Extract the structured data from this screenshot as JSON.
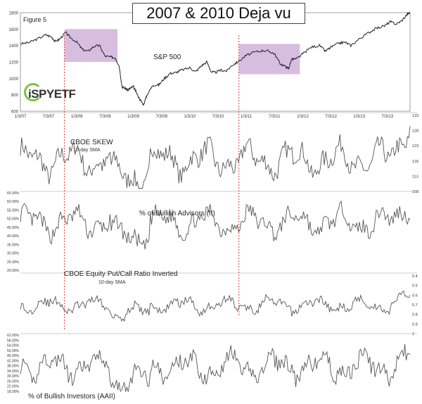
{
  "title": "2007 & 2010 Deja vu",
  "figure_label": "Figure 5",
  "logo_text": "iSPYETF",
  "colors": {
    "line": "#333333",
    "highlight": "#caa8d6",
    "marker": "#e23b3b",
    "panel_rule": "#bbbbbb"
  },
  "chart_data": [
    {
      "type": "line",
      "name": "sp500",
      "label": "S&P 500",
      "ylim": [
        600,
        1800
      ],
      "yticks": [
        "1800",
        "1600",
        "1400",
        "1200",
        "1000",
        "800",
        "600"
      ],
      "xticks": [
        "1/3/07",
        "7/3/07",
        "1/3/08",
        "7/3/08",
        "1/3/09",
        "7/3/09",
        "1/3/10",
        "7/3/10",
        "1/3/11",
        "7/3/11",
        "1/3/12",
        "7/3/12",
        "1/3/13",
        "7/3/13"
      ],
      "x_start_year": 2007.0,
      "x_end_year": 2013.9,
      "highlights": [
        {
          "from": 2007.78,
          "to": 2008.72,
          "ymin": 1200,
          "ymax": 1600
        },
        {
          "from": 2010.87,
          "to": 2011.95,
          "ymin": 1050,
          "ymax": 1420
        }
      ],
      "points": [
        [
          2007.0,
          1420
        ],
        [
          2007.15,
          1435
        ],
        [
          2007.3,
          1480
        ],
        [
          2007.45,
          1530
        ],
        [
          2007.55,
          1505
        ],
        [
          2007.62,
          1450
        ],
        [
          2007.7,
          1480
        ],
        [
          2007.8,
          1560
        ],
        [
          2007.88,
          1500
        ],
        [
          2008.0,
          1440
        ],
        [
          2008.1,
          1350
        ],
        [
          2008.2,
          1330
        ],
        [
          2008.3,
          1390
        ],
        [
          2008.4,
          1400
        ],
        [
          2008.5,
          1270
        ],
        [
          2008.6,
          1260
        ],
        [
          2008.68,
          1250
        ],
        [
          2008.75,
          1150
        ],
        [
          2008.8,
          900
        ],
        [
          2008.85,
          880
        ],
        [
          2008.9,
          860
        ],
        [
          2008.95,
          880
        ],
        [
          2009.0,
          900
        ],
        [
          2009.05,
          830
        ],
        [
          2009.12,
          740
        ],
        [
          2009.18,
          680
        ],
        [
          2009.25,
          810
        ],
        [
          2009.35,
          920
        ],
        [
          2009.45,
          920
        ],
        [
          2009.55,
          1000
        ],
        [
          2009.65,
          1060
        ],
        [
          2009.75,
          1070
        ],
        [
          2009.85,
          1100
        ],
        [
          2010.0,
          1130
        ],
        [
          2010.1,
          1080
        ],
        [
          2010.2,
          1150
        ],
        [
          2010.3,
          1200
        ],
        [
          2010.38,
          1080
        ],
        [
          2010.45,
          1070
        ],
        [
          2010.55,
          1100
        ],
        [
          2010.65,
          1090
        ],
        [
          2010.75,
          1160
        ],
        [
          2010.85,
          1200
        ],
        [
          2011.0,
          1280
        ],
        [
          2011.15,
          1320
        ],
        [
          2011.3,
          1340
        ],
        [
          2011.4,
          1330
        ],
        [
          2011.5,
          1300
        ],
        [
          2011.6,
          1180
        ],
        [
          2011.7,
          1140
        ],
        [
          2011.75,
          1120
        ],
        [
          2011.8,
          1230
        ],
        [
          2011.9,
          1240
        ],
        [
          2012.0,
          1300
        ],
        [
          2012.15,
          1380
        ],
        [
          2012.3,
          1400
        ],
        [
          2012.4,
          1330
        ],
        [
          2012.5,
          1380
        ],
        [
          2012.65,
          1430
        ],
        [
          2012.75,
          1440
        ],
        [
          2012.85,
          1400
        ],
        [
          2013.0,
          1480
        ],
        [
          2013.15,
          1550
        ],
        [
          2013.3,
          1610
        ],
        [
          2013.45,
          1640
        ],
        [
          2013.55,
          1690
        ],
        [
          2013.65,
          1660
        ],
        [
          2013.75,
          1700
        ],
        [
          2013.85,
          1780
        ],
        [
          2013.9,
          1800
        ]
      ]
    },
    {
      "type": "line",
      "name": "skew",
      "label": "CBOE SKEW",
      "sublabel": "10-day SMA",
      "yticks_right": [
        "133",
        "128",
        "123",
        "118",
        "113",
        "108"
      ],
      "ylim": [
        108,
        133
      ],
      "seed": 7,
      "base": 118,
      "amp": 4.2,
      "endkick": 12
    },
    {
      "type": "line",
      "name": "bullish_advisors",
      "label": "% of Bullish Advisors (II)",
      "yticks_left": [
        "65.00%",
        "60.00%",
        "55.00%",
        "50.00%",
        "45.00%",
        "40.00%",
        "35.00%",
        "30.00%",
        "25.00%",
        "20.00%"
      ],
      "ylim": [
        20,
        65
      ],
      "seed": 13,
      "base": 48,
      "amp": 6,
      "endkick": 12
    },
    {
      "type": "line",
      "name": "putcall_inverted",
      "label": "CBOE Equity Put/Call Ratio Inverted",
      "sublabel": "10-day SMA",
      "yticks_right": [
        "0.4",
        "0.5",
        "0.6",
        "0.7",
        "0.8",
        "0.9",
        "1"
      ],
      "ylim": [
        0.35,
        1.05
      ],
      "seed": 29,
      "base": 0.68,
      "amp": 0.07,
      "endkick": 0.12
    },
    {
      "type": "line",
      "name": "bullish_investors",
      "label": "% of Bullish Investors (AAII)",
      "yticks_left": [
        "62.00%",
        "58.00%",
        "54.00%",
        "50.00%",
        "46.00%",
        "42.00%",
        "38.00%",
        "34.00%",
        "30.00%",
        "26.00%",
        "22.00%",
        "18.00%"
      ],
      "ylim": [
        18,
        62
      ],
      "seed": 41,
      "base": 38,
      "amp": 8,
      "endkick": 6
    }
  ],
  "markers_years": [
    2007.78,
    2010.87
  ]
}
